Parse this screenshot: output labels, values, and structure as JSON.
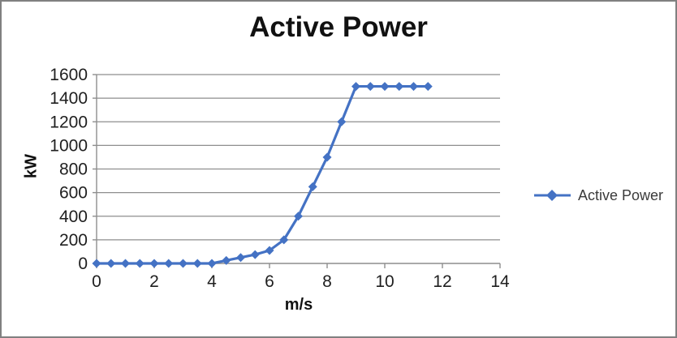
{
  "frame": {
    "background": "#FFFFFF",
    "border_color": "#808080"
  },
  "chart_data": {
    "type": "line",
    "title": "Active Power",
    "xlabel": "m/s",
    "ylabel": "kW",
    "legend_entries": [
      "Active Power"
    ],
    "legend_position": "right",
    "grid": "horizontal",
    "xlim": [
      0,
      14
    ],
    "ylim": [
      0,
      1600
    ],
    "x_ticks": [
      0,
      2,
      4,
      6,
      8,
      10,
      12,
      14
    ],
    "y_ticks": [
      0,
      200,
      400,
      600,
      800,
      1000,
      1200,
      1400,
      1600
    ],
    "axis_color": "#8E8E8E",
    "gridline_color": "#8E8E8E",
    "text_color": "#1F1F1F",
    "series": [
      {
        "name": "Active Power",
        "color": "#4472C4",
        "marker": "diamond",
        "x": [
          0,
          0.5,
          1,
          1.5,
          2,
          2.5,
          3,
          3.5,
          4,
          4.5,
          5,
          5.5,
          6,
          6.5,
          7,
          7.5,
          8,
          8.5,
          9,
          9.5,
          10,
          10.5,
          11,
          11.5
        ],
        "values": [
          0,
          0,
          0,
          0,
          0,
          0,
          0,
          0,
          0,
          25,
          50,
          75,
          110,
          200,
          400,
          650,
          900,
          1200,
          1500,
          1500,
          1500,
          1500,
          1500,
          1500
        ]
      }
    ]
  }
}
